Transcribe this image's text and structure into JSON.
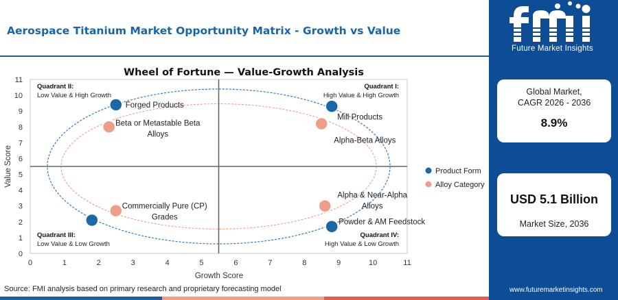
{
  "header": {
    "title": "Aerospace Titanium Market Opportunity Matrix - Growth vs Value"
  },
  "sidebar": {
    "logo_text": "fmi",
    "logo_tagline": "Future Market Insights",
    "cagr_label_line1": "Global Market,",
    "cagr_label_line2": "CAGR 2026 - 2036",
    "cagr_value": "8.9%",
    "size_value": "USD 5.1 Billion",
    "size_label": "Market Size, 2036",
    "website": "www.futuremarketinsights.com"
  },
  "footer": {
    "source": "Source: FMI analysis based on primary research and proprietary forecasting model"
  },
  "colors": {
    "brand_blue": "#0d4d96",
    "product_form": "#1a69a6",
    "alloy_category": "#ec9e86",
    "ellipse_outer": "#2d7bbf",
    "ellipse_inner": "#ec9e86",
    "bar_colors": [
      "#1a5f9e",
      "#ec9e86",
      "#e75a4e",
      "#0d4d96"
    ]
  },
  "chart_data": {
    "type": "scatter",
    "title": "Wheel of Fortune — Value-Growth Analysis",
    "xlabel": "Growth Score",
    "ylabel": "Value Score",
    "xlim": [
      0,
      11
    ],
    "ylim": [
      0,
      11
    ],
    "xticks": [
      0,
      1,
      2,
      3,
      4,
      5,
      6,
      7,
      8,
      9,
      10,
      11
    ],
    "yticks": [
      0,
      1,
      2,
      3,
      4,
      5,
      6,
      7,
      8,
      9,
      10,
      11
    ],
    "divider_x": 5.5,
    "divider_y": 5.5,
    "legend_position": "right",
    "quadrants": [
      {
        "id": "q2",
        "title": "Quadrant II:",
        "subtitle": "Low Value & High Growth",
        "position": "top-left"
      },
      {
        "id": "q1",
        "title": "Quadrant I:",
        "subtitle": "High Value & High Growth",
        "position": "top-right"
      },
      {
        "id": "q3",
        "title": "Quadrant III:",
        "subtitle": "Low Value & Low Growth",
        "position": "bottom-left"
      },
      {
        "id": "q4",
        "title": "Quadrant IV:",
        "subtitle": "High Value & Low Growth",
        "position": "bottom-right"
      }
    ],
    "series": [
      {
        "name": "Product Form",
        "color": "#1a69a6",
        "points": [
          {
            "label": "Forged Products",
            "x": 2.5,
            "y": 9.4
          },
          {
            "label": "Mill Products",
            "x": 8.8,
            "y": 9.3
          },
          {
            "label": "Commercially Pure (CP) Grades",
            "x": 1.8,
            "y": 2.1
          },
          {
            "label": "Powder & AM Feedstock",
            "x": 8.8,
            "y": 1.7
          }
        ]
      },
      {
        "name": "Alloy Category",
        "color": "#ec9e86",
        "points": [
          {
            "label": "Beta or Metastable Beta Alloys",
            "x": 2.3,
            "y": 8.0
          },
          {
            "label": "Alpha-Beta Alloys",
            "x": 8.5,
            "y": 8.2
          },
          {
            "label": "Alpha & Near-Alpha Alloys",
            "x": 8.6,
            "y": 3.0
          },
          {
            "label": "Commercially Pure (CP) Grades",
            "x": 2.5,
            "y": 2.7
          }
        ]
      }
    ]
  }
}
